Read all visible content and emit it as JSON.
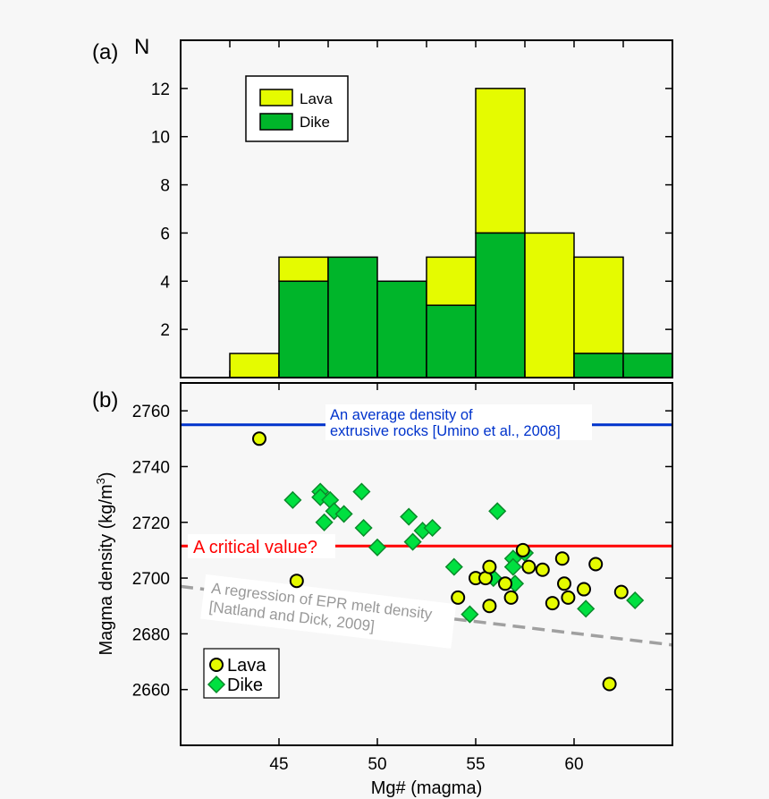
{
  "colors": {
    "lava": "#e5fb00",
    "dike": "#00b52a",
    "dike_marker": "#00e040",
    "average_line": "#0033cc",
    "critical_line": "#ff0000",
    "regression_line": "#a0a0a0",
    "background": "#f7f7f7"
  },
  "chart_data": [
    {
      "type": "bar",
      "panel_label": "(a)",
      "ylabel": "N",
      "stacked": true,
      "bin_edges": [
        42.5,
        45,
        47.5,
        50,
        52.5,
        55,
        57.5,
        60,
        62.5,
        65
      ],
      "xlim": [
        40,
        65
      ],
      "ylim": [
        0,
        14
      ],
      "yticks": [
        "2",
        "4",
        "6",
        "8",
        "10",
        "12"
      ],
      "series": [
        {
          "name": "Dike",
          "values": [
            0,
            4,
            5,
            4,
            3,
            6,
            0,
            1,
            1
          ]
        },
        {
          "name": "Lava",
          "values": [
            1,
            1,
            0,
            0,
            2,
            6,
            6,
            4,
            0
          ]
        }
      ],
      "legend": {
        "placement": "top-left",
        "entries": [
          "Lava",
          "Dike"
        ]
      }
    },
    {
      "type": "scatter",
      "panel_label": "(b)",
      "xlabel": "Mg# (magma)",
      "ylabel": "Magma density (kg/m",
      "ylabel_sup": "3",
      "ylabel_end": ")",
      "xlim": [
        40,
        65
      ],
      "ylim": [
        2640,
        2770
      ],
      "xticks": [
        "45",
        "50",
        "55",
        "60"
      ],
      "yticks": [
        "2660",
        "2680",
        "2700",
        "2720",
        "2740",
        "2760"
      ],
      "series": [
        {
          "name": "Lava",
          "marker": "circle",
          "points": [
            [
              44.0,
              2750
            ],
            [
              45.9,
              2699
            ],
            [
              54.1,
              2693
            ],
            [
              55.0,
              2700
            ],
            [
              55.5,
              2700
            ],
            [
              55.7,
              2704
            ],
            [
              55.7,
              2690
            ],
            [
              56.5,
              2698
            ],
            [
              56.8,
              2693
            ],
            [
              57.4,
              2710
            ],
            [
              57.7,
              2704
            ],
            [
              58.4,
              2703
            ],
            [
              59.4,
              2707
            ],
            [
              59.5,
              2698
            ],
            [
              59.7,
              2693
            ],
            [
              58.9,
              2691
            ],
            [
              60.5,
              2696
            ],
            [
              61.1,
              2705
            ],
            [
              62.4,
              2695
            ],
            [
              61.8,
              2662
            ]
          ]
        },
        {
          "name": "Dike",
          "marker": "diamond",
          "points": [
            [
              45.7,
              2728
            ],
            [
              47.1,
              2731
            ],
            [
              47.1,
              2729
            ],
            [
              47.6,
              2728
            ],
            [
              47.8,
              2724
            ],
            [
              47.3,
              2720
            ],
            [
              48.3,
              2723
            ],
            [
              49.2,
              2731
            ],
            [
              49.3,
              2718
            ],
            [
              50.0,
              2711
            ],
            [
              51.6,
              2722
            ],
            [
              51.8,
              2713
            ],
            [
              52.3,
              2717
            ],
            [
              52.8,
              2718
            ],
            [
              53.9,
              2704
            ],
            [
              54.7,
              2687
            ],
            [
              56.1,
              2724
            ],
            [
              56.9,
              2707
            ],
            [
              57.5,
              2709
            ],
            [
              56.9,
              2704
            ],
            [
              55.9,
              2700
            ],
            [
              57.0,
              2698
            ],
            [
              60.6,
              2689
            ],
            [
              63.1,
              2692
            ]
          ]
        }
      ],
      "reference_lines": [
        {
          "label_lines": [
            "An average density of",
            "extrusive rocks [Umino et al., 2008]"
          ],
          "y": 2755,
          "style": "solid",
          "color": "#0033cc"
        },
        {
          "label_lines": [
            "A critical value?"
          ],
          "y": 2711.5,
          "style": "solid",
          "color": "#ff0000"
        },
        {
          "label_lines": [
            "A regression of EPR melt density",
            "[Natland and Dick, 2009]"
          ],
          "x": [
            40,
            65
          ],
          "y": [
            2697,
            2676
          ],
          "style": "dashed",
          "color": "#a0a0a0"
        }
      ],
      "legend": {
        "placement": "bottom-left",
        "entries": [
          "Lava",
          "Dike"
        ]
      }
    }
  ]
}
